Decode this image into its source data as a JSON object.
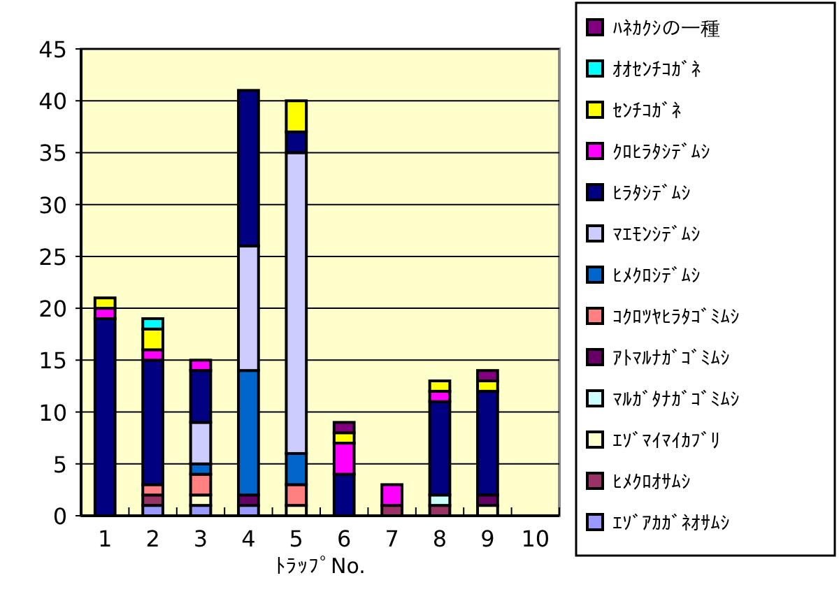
{
  "chart_data": {
    "type": "bar",
    "stacked": true,
    "xlabel": "ﾄﾗｯﾌﾟNo.",
    "categories": [
      "1",
      "2",
      "3",
      "4",
      "5",
      "6",
      "7",
      "8",
      "9",
      "10"
    ],
    "ylim": [
      0,
      45
    ],
    "yticks": [
      0,
      5,
      10,
      15,
      20,
      25,
      30,
      35,
      40,
      45
    ],
    "grid": "y",
    "legend": "right",
    "series": [
      {
        "name": "ｴｿﾞｱｶｶﾞﾈｵｻﾑｼ",
        "color": "#9999ff",
        "values": [
          null,
          1,
          1,
          1,
          null,
          null,
          null,
          null,
          null,
          null
        ]
      },
      {
        "name": "ﾋﾒｸﾛｵｻﾑｼ",
        "color": "#993366",
        "values": [
          null,
          1,
          null,
          null,
          null,
          null,
          1,
          1,
          null,
          null
        ]
      },
      {
        "name": "ｴｿﾞﾏｲﾏｲｶﾌﾞﾘ",
        "color": "#ffffcc",
        "values": [
          null,
          null,
          1,
          null,
          1,
          null,
          null,
          null,
          1,
          null
        ]
      },
      {
        "name": "ﾏﾙｶﾞﾀﾅｶﾞｺﾞﾐﾑｼ",
        "color": "#ccffff",
        "values": [
          null,
          null,
          null,
          null,
          null,
          null,
          null,
          1,
          null,
          null
        ]
      },
      {
        "name": "ｱﾄﾏﾙﾅｶﾞｺﾞﾐﾑｼ",
        "color": "#660066",
        "values": [
          null,
          null,
          null,
          1,
          null,
          null,
          null,
          null,
          1,
          null
        ]
      },
      {
        "name": "ｺｸﾛﾂﾔﾋﾗﾀｺﾞﾐﾑｼ",
        "color": "#ff8080",
        "values": [
          null,
          1,
          2,
          null,
          2,
          null,
          null,
          null,
          null,
          null
        ]
      },
      {
        "name": "ﾋﾒｸﾛｼﾃﾞﾑｼ",
        "color": "#0066cc",
        "values": [
          null,
          null,
          1,
          12,
          3,
          null,
          null,
          null,
          null,
          null
        ]
      },
      {
        "name": "ﾏｴﾓﾝｼﾃﾞﾑｼ",
        "color": "#ccccff",
        "values": [
          null,
          null,
          4,
          12,
          29,
          null,
          null,
          null,
          null,
          null
        ]
      },
      {
        "name": "ﾋﾗﾀｼﾃﾞﾑｼ",
        "color": "#000080",
        "values": [
          19,
          12,
          5,
          15,
          2,
          4,
          null,
          9,
          10,
          null
        ]
      },
      {
        "name": "ｸﾛﾋﾗﾀｼﾃﾞﾑｼ",
        "color": "#ff00ff",
        "values": [
          1,
          1,
          1,
          null,
          null,
          3,
          2,
          1,
          null,
          null
        ]
      },
      {
        "name": "ｾﾝﾁｺｶﾞﾈ",
        "color": "#ffff00",
        "values": [
          1,
          2,
          null,
          null,
          3,
          1,
          null,
          1,
          1,
          null
        ]
      },
      {
        "name": "ｵｵｾﾝﾁｺｶﾞﾈ",
        "color": "#00ffff",
        "values": [
          null,
          1,
          null,
          null,
          null,
          null,
          null,
          null,
          null,
          null
        ]
      },
      {
        "name": "ﾊﾈｶｸｼの一種",
        "color": "#800080",
        "values": [
          null,
          null,
          null,
          null,
          null,
          1,
          null,
          null,
          1,
          null
        ]
      }
    ]
  }
}
